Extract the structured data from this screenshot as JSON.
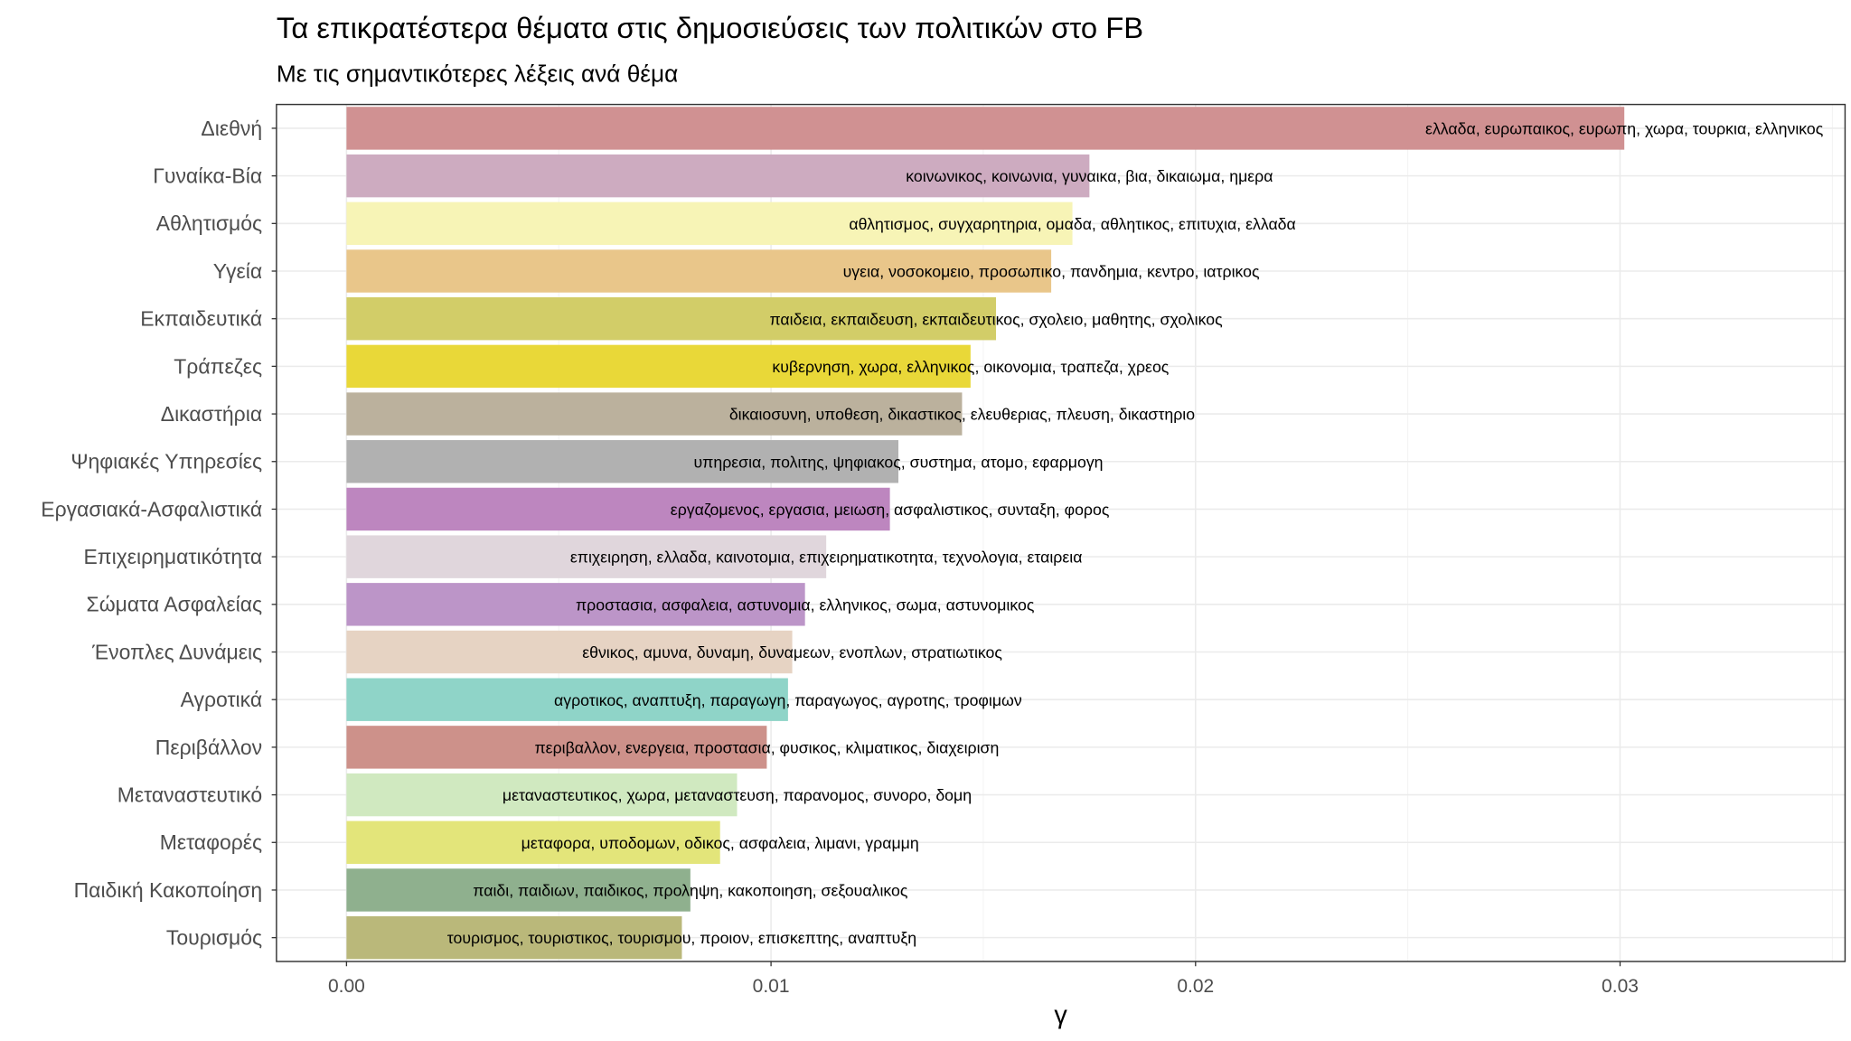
{
  "chart_data": {
    "type": "bar",
    "orientation": "horizontal",
    "title": "Τα επικρατέστερα θέματα στις δημοσιεύσεις των πολιτικών στο FB",
    "subtitle": "Με τις σημαντικότερες λέξεις ανά θέμα",
    "xlabel": "γ",
    "ylabel": "",
    "xlim": [
      -0.00165,
      0.0353
    ],
    "xticks": [
      0.0,
      0.01,
      0.02,
      0.03
    ],
    "xtick_labels": [
      "0.00",
      "0.01",
      "0.02",
      "0.03"
    ],
    "grid": true,
    "legend": "none",
    "categories": [
      "Διεθνή",
      "Γυναίκα-Βία",
      "Αθλητισμός",
      "Υγεία",
      "Εκπαιδευτικά",
      "Τράπεζες",
      "Δικαστήρια",
      "Ψηφιακές Υπηρεσίες",
      "Εργασιακά-Ασφαλιστικά",
      "Επιχειρηματικότητα",
      "Σώματα Ασφαλείας",
      "Ένοπλες Δυνάμεις",
      "Αγροτικά",
      "Περιβάλλον",
      "Μεταναστευτικό",
      "Μεταφορές",
      "Παιδική Κακοποίηση",
      "Τουρισμός"
    ],
    "values": [
      0.0301,
      0.0175,
      0.0171,
      0.0166,
      0.0153,
      0.0147,
      0.0145,
      0.013,
      0.0128,
      0.0113,
      0.0108,
      0.0105,
      0.0104,
      0.0099,
      0.0092,
      0.0088,
      0.0081,
      0.0079
    ],
    "labels": [
      "ελλαδα, ευρωπαικος, ευρωπη, χωρα, τουρκια, ελληνικος",
      "κοινωνικος, κοινωνια, γυναικα, βια, δικαιωμα, ημερα",
      "αθλητισμος, συγχαρητηρια, ομαδα, αθλητικος, επιτυχια, ελλαδα",
      "υγεια, νοσοκομειο, προσωπικο, πανδημια, κεντρο, ιατρικος",
      "παιδεια, εκπαιδευση, εκπαιδευτικος, σχολειο, μαθητης, σχολικος",
      "κυβερνηση, χωρα, ελληνικος, οικονομια, τραπεζα, χρεος",
      "δικαιοσυνη, υποθεση, δικαστικος, ελευθεριας, πλευση, δικαστηριο",
      "υπηρεσια, πολιτης, ψηφιακος, συστημα, ατομο, εφαρμογη",
      "εργαζομενος, εργασια, μειωση, ασφαλιστικος, συνταξη, φορος",
      "επιχειρηση, ελλαδα, καινοτομια, επιχειρηματικοτητα, τεχνολογια, εταιρεια",
      "προστασια, ασφαλεια, αστυνομια, ελληνικος, σωμα, αστυνομικος",
      "εθνικος, αμυνα, δυναμη, δυναμεων, ενοπλων, στρατιωτικος",
      "αγροτικος, αναπτυξη, παραγωγη, παραγωγος, αγροτης, τροφιμων",
      "περιβαλλον, ενεργεια, προστασια, φυσικος, κλιματικος, διαχειριση",
      "μεταναστευτικος, χωρα, μεταναστευση, παρανομος, συνορο, δομη",
      "μεταφορα, υποδομων, οδικος, ασφαλεια, λιμανι, γραμμη",
      "παιδι, παιδιων, παιδικος, προληψη, κακοποιηση, σεξουαλικος",
      "τουρισμος, τουριστικος, τουρισμου, προιον, επισκεπτης, αναπτυξη"
    ],
    "colors": [
      "#d09192",
      "#cdabc0",
      "#f7f4b6",
      "#e9c68a",
      "#d2cd68",
      "#e9d838",
      "#bbb19d",
      "#b1b1b1",
      "#bd86bf",
      "#e0d6dc",
      "#bc95c8",
      "#e6d3c3",
      "#8fd4c8",
      "#cd918a",
      "#d0e9c0",
      "#e3e57a",
      "#8fb08e",
      "#bab87a"
    ]
  }
}
